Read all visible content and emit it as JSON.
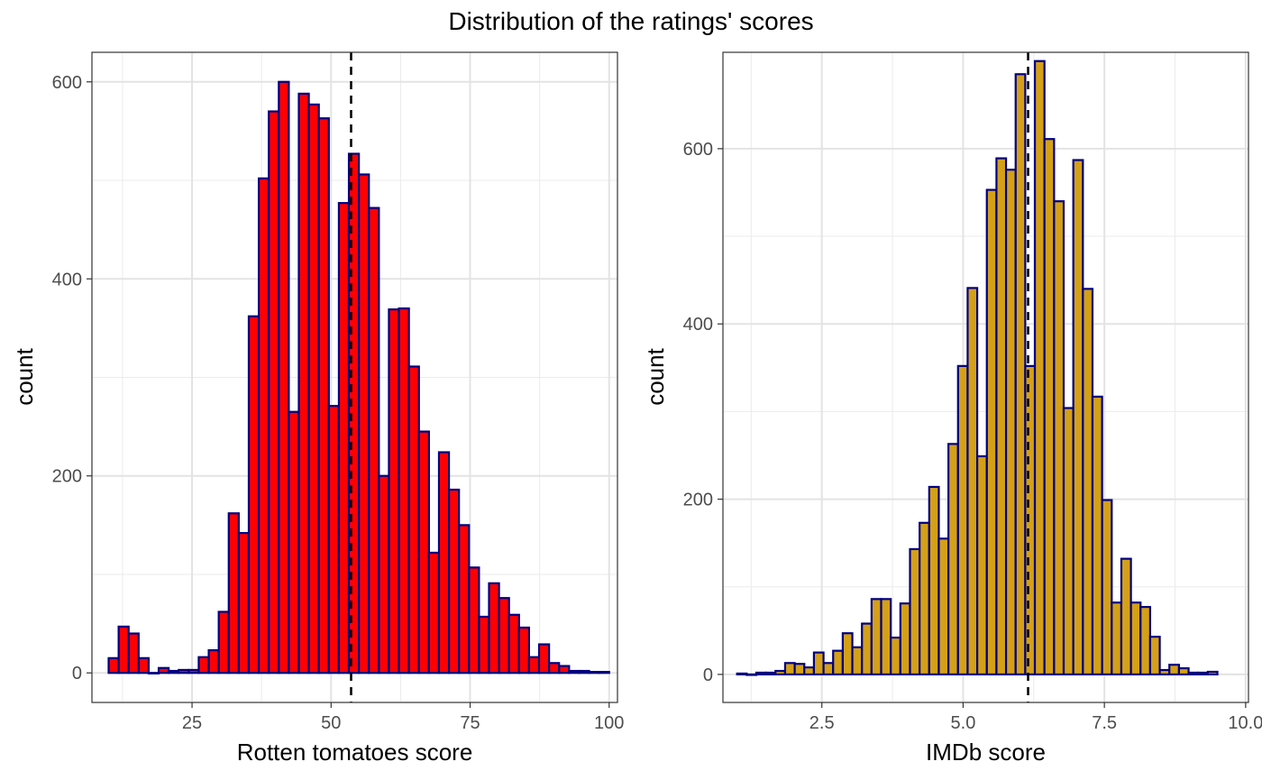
{
  "title": "Distribution of the ratings' scores",
  "chart_data": [
    {
      "type": "bar",
      "subtype": "histogram",
      "xlabel": "Rotten tomatoes score",
      "ylabel": "count",
      "xlim": [
        7,
        101.5
      ],
      "ylim": [
        -30,
        630
      ],
      "x_ticks": [
        25,
        50,
        75,
        100
      ],
      "x_tick_labels": [
        "25",
        "50",
        "75",
        "100"
      ],
      "y_ticks": [
        0,
        200,
        400,
        600
      ],
      "y_tick_labels": [
        "0",
        "200",
        "400",
        "600"
      ],
      "x_minor_ticks": [
        12.5,
        37.5,
        62.5,
        87.5
      ],
      "y_minor_ticks": [
        100,
        300,
        500
      ],
      "grid": true,
      "fill_color": "#ff0000",
      "edge_color": "#000080",
      "mean_line": 53.6,
      "bin_start": 10,
      "bin_width": 1.8,
      "values": [
        15,
        47,
        40,
        15,
        0,
        5,
        2,
        3,
        3,
        16,
        23,
        62,
        162,
        142,
        362,
        502,
        570,
        600,
        265,
        588,
        577,
        563,
        271,
        477,
        527,
        506,
        472,
        200,
        369,
        370,
        311,
        245,
        122,
        224,
        186,
        150,
        107,
        57,
        91,
        76,
        59,
        46,
        16,
        29,
        10,
        7,
        2,
        2,
        1,
        1
      ]
    },
    {
      "type": "bar",
      "subtype": "histogram",
      "xlabel": "IMDb score",
      "ylabel": "count",
      "xlim": [
        0.75,
        10.05
      ],
      "ylim": [
        -32,
        710
      ],
      "x_ticks": [
        2.5,
        5.0,
        7.5,
        10.0
      ],
      "x_tick_labels": [
        "2.5",
        "5.0",
        "7.5",
        "10.0"
      ],
      "y_ticks": [
        0,
        200,
        400,
        600
      ],
      "y_tick_labels": [
        "0",
        "200",
        "400",
        "600"
      ],
      "x_minor_ticks": [
        1.25,
        3.75,
        6.25,
        8.75
      ],
      "y_minor_ticks": [
        100,
        300,
        500
      ],
      "grid": true,
      "fill_color": "#d4a017",
      "edge_color": "#000080",
      "mean_line": 6.15,
      "bin_start": 1.0,
      "bin_width": 0.17,
      "values": [
        1,
        0,
        2,
        2,
        4,
        13,
        12,
        8,
        25,
        13,
        27,
        47,
        31,
        58,
        86,
        86,
        42,
        81,
        143,
        173,
        214,
        155,
        263,
        352,
        441,
        249,
        553,
        589,
        576,
        685,
        352,
        700,
        611,
        540,
        304,
        587,
        440,
        317,
        199,
        82,
        132,
        82,
        77,
        43,
        5,
        11,
        7,
        2,
        2,
        3
      ]
    }
  ]
}
